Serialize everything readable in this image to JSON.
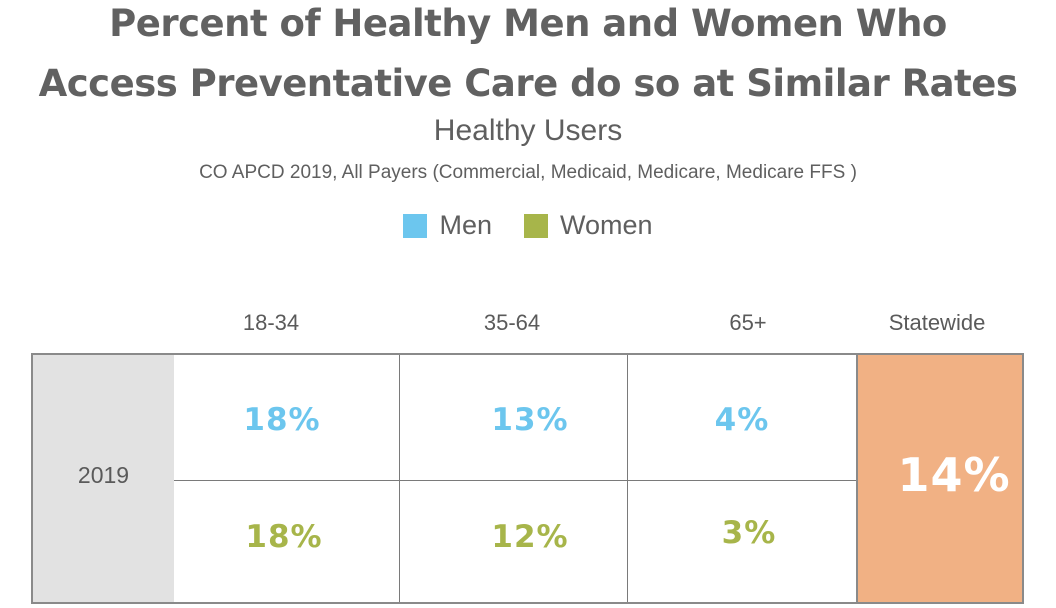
{
  "chart_data": {
    "type": "table",
    "title": [
      "Percent of Healthy Men and Women Who",
      "Access Preventative Care do so at Similar Rates"
    ],
    "subtitle": "Healthy Users",
    "source": "CO APCD 2019,  All Payers (Commercial, Medicaid, Medicare, Medicare FFS )",
    "legend": [
      {
        "name": "Men",
        "color": "#6cc6ee"
      },
      {
        "name": "Women",
        "color": "#a7b54a"
      }
    ],
    "columns": [
      "18-34",
      "35-64",
      "65+",
      "Statewide"
    ],
    "row_label": "2019",
    "series": [
      {
        "name": "Men",
        "color": "#6cc6ee",
        "values": [
          "18%",
          "13%",
          "4%"
        ]
      },
      {
        "name": "Women",
        "color": "#a7b54a",
        "values": [
          "18%",
          "12%",
          "3%"
        ]
      }
    ],
    "statewide": "14%",
    "statewide_color": "#f1b184",
    "year_cell_color": "#e2e2e2"
  }
}
